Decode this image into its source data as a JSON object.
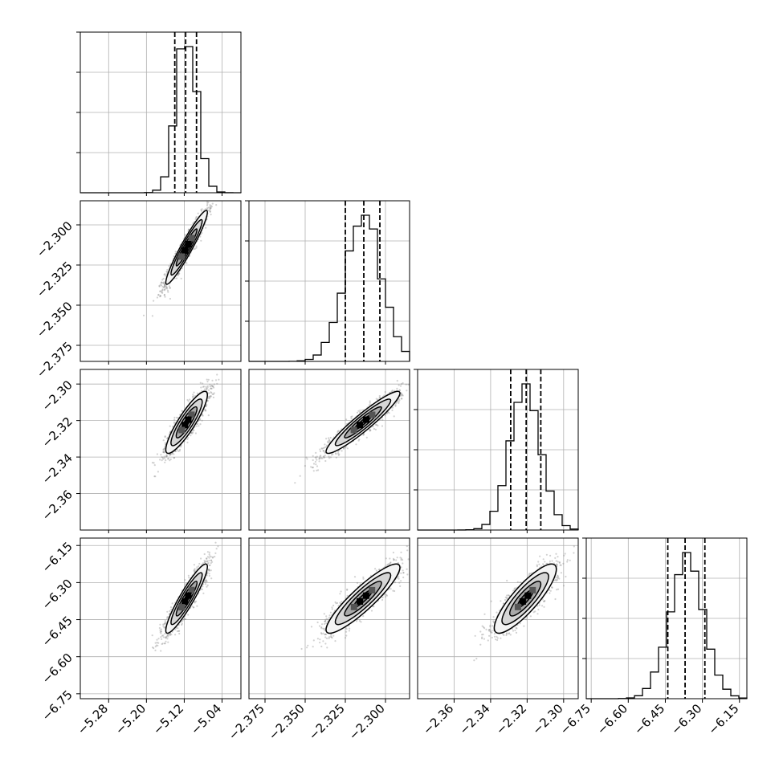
{
  "chart_data": {
    "type": "corner",
    "title": "",
    "grid": true,
    "params": [
      {
        "range": [
          -5.34,
          -5.0
        ],
        "ticks": [
          -5.28,
          -5.2,
          -5.12,
          -5.04
        ],
        "tick_labels": [
          "−5.28",
          "−5.20",
          "−5.12",
          "−5.04"
        ],
        "mean": -5.115,
        "std": 0.022,
        "quantiles": [
          -5.14,
          -5.117,
          -5.094
        ]
      },
      {
        "range": [
          -2.385,
          -2.285
        ],
        "ticks": [
          -2.375,
          -2.35,
          -2.325,
          -2.3
        ],
        "tick_labels": [
          "−2.375",
          "−2.350",
          "−2.325",
          "−2.300"
        ],
        "mean": -2.314,
        "std": 0.0115,
        "quantiles": [
          -2.325,
          -2.3135,
          -2.3035
        ]
      },
      {
        "range": [
          -2.38,
          -2.292
        ],
        "ticks": [
          -2.36,
          -2.34,
          -2.32,
          -2.3
        ],
        "tick_labels": [
          "−2.36",
          "−2.34",
          "−2.32",
          "−2.30"
        ],
        "mean": -2.321,
        "std": 0.0085,
        "quantiles": [
          -2.329,
          -2.3205,
          -2.3125
        ]
      },
      {
        "range": [
          -6.77,
          -6.12
        ],
        "ticks": [
          -6.75,
          -6.6,
          -6.45,
          -6.3,
          -6.15
        ],
        "tick_labels": [
          "−6.75",
          "−6.60",
          "−6.45",
          "−6.30",
          "−6.15"
        ],
        "mean": -6.365,
        "std": 0.07,
        "quantiles": [
          -6.44,
          -6.37,
          -6.29
        ]
      }
    ],
    "pairs": [
      {
        "x": 0,
        "y": 1,
        "correlation": 0.95
      },
      {
        "x": 0,
        "y": 2,
        "correlation": 0.88
      },
      {
        "x": 1,
        "y": 2,
        "correlation": 0.94
      },
      {
        "x": 0,
        "y": 3,
        "correlation": 0.92
      },
      {
        "x": 1,
        "y": 3,
        "correlation": 0.9
      },
      {
        "x": 2,
        "y": 3,
        "correlation": 0.85
      }
    ]
  }
}
